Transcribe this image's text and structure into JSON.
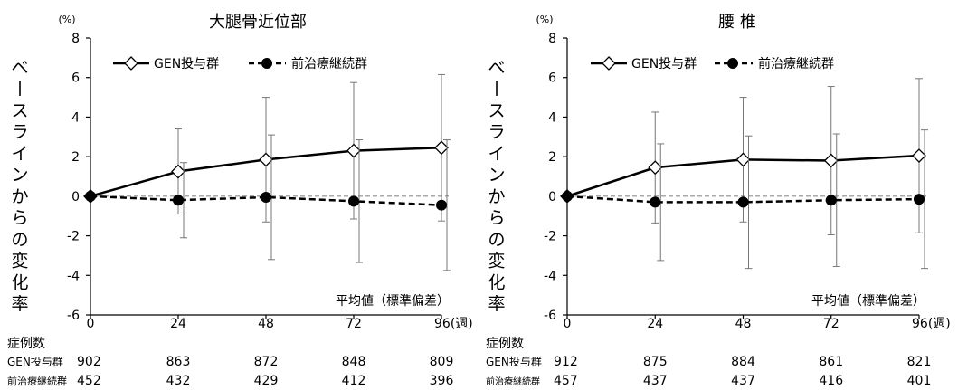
{
  "legend": {
    "gen_label": "GEN投与群",
    "prev_label": "前治療継続群"
  },
  "note": "平均値（標準偏差）",
  "counts_header": "症例数",
  "chart_data": [
    {
      "type": "line",
      "title": "大腿骨近位部",
      "unit_label": "(%)",
      "ylabel": "ベースラインからの変化率",
      "ylim": [
        -6,
        8
      ],
      "yticks": [
        -6,
        -4,
        -2,
        0,
        2,
        4,
        6,
        8
      ],
      "x": [
        0,
        24,
        48,
        72,
        96
      ],
      "x_tick_labels": [
        "0",
        "24",
        "48",
        "72",
        "96(週)"
      ],
      "legend_position": "top",
      "reference_line": 0,
      "series": [
        {
          "name": "GEN投与群",
          "marker": "diamond-open",
          "style": "solid",
          "color": "#000000",
          "values": [
            0,
            1.25,
            1.85,
            2.3,
            2.45
          ],
          "sd": [
            0,
            2.15,
            3.15,
            3.45,
            3.7
          ],
          "n_label": "GEN投与群",
          "n": [
            902,
            863,
            872,
            848,
            809
          ]
        },
        {
          "name": "前治療継続群",
          "marker": "circle-filled",
          "style": "dashed",
          "color": "#000000",
          "values": [
            0,
            -0.2,
            -0.05,
            -0.25,
            -0.45
          ],
          "sd": [
            0,
            1.9,
            3.15,
            3.1,
            3.3
          ],
          "n_label": "前治療継続群",
          "n": [
            452,
            432,
            429,
            412,
            396
          ]
        }
      ]
    },
    {
      "type": "line",
      "title": "腰 椎",
      "unit_label": "(%)",
      "ylabel": "ベースラインからの変化率",
      "ylim": [
        -6,
        8
      ],
      "yticks": [
        -6,
        -4,
        -2,
        0,
        2,
        4,
        6,
        8
      ],
      "x": [
        0,
        24,
        48,
        72,
        96
      ],
      "x_tick_labels": [
        "0",
        "24",
        "48",
        "72",
        "96(週)"
      ],
      "legend_position": "top",
      "reference_line": 0,
      "series": [
        {
          "name": "GEN投与群",
          "marker": "diamond-open",
          "style": "solid",
          "color": "#000000",
          "values": [
            0,
            1.45,
            1.85,
            1.8,
            2.05
          ],
          "sd": [
            0,
            2.8,
            3.15,
            3.75,
            3.9
          ],
          "n_label": "GEN投与群",
          "n": [
            912,
            875,
            884,
            861,
            821
          ]
        },
        {
          "name": "前治療継続群",
          "marker": "circle-filled",
          "style": "dashed",
          "color": "#000000",
          "values": [
            0,
            -0.3,
            -0.3,
            -0.2,
            -0.15
          ],
          "sd": [
            0,
            2.95,
            3.35,
            3.35,
            3.5
          ],
          "n_label": "前治療継続群",
          "n": [
            457,
            437,
            437,
            416,
            401
          ]
        }
      ]
    }
  ]
}
